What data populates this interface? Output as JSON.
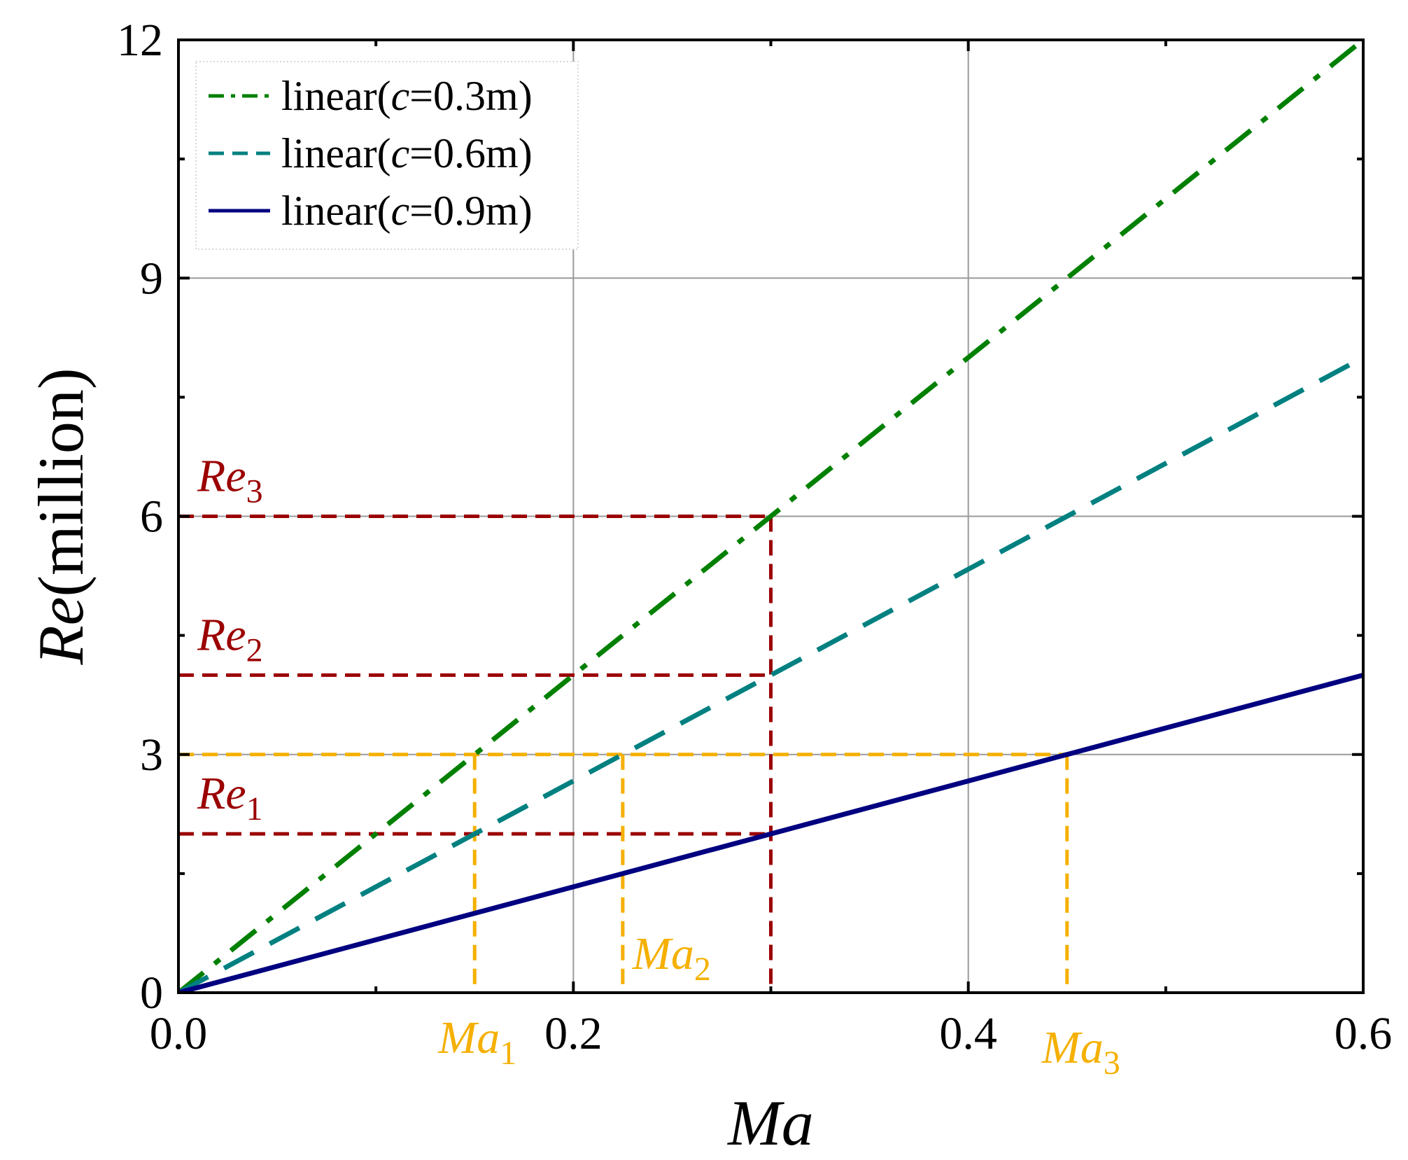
{
  "chart_data": {
    "type": "line",
    "xlabel": "Ma",
    "ylabel_var": "Re",
    "ylabel_unit": "(million)",
    "xlim": [
      0.0,
      0.6
    ],
    "ylim": [
      0,
      12
    ],
    "xticks": [
      0.0,
      0.1,
      0.2,
      0.3,
      0.4,
      0.5,
      0.6
    ],
    "xtick_labels": [
      {
        "value": 0.0,
        "text": "0.0"
      },
      {
        "value": 0.2,
        "text": "0.2"
      },
      {
        "value": 0.4,
        "text": "0.4"
      },
      {
        "value": 0.6,
        "text": "0.6"
      }
    ],
    "yticks": [
      0,
      1.5,
      3,
      4.5,
      6,
      7.5,
      9,
      10.5,
      12
    ],
    "ytick_labels": [
      {
        "value": 0,
        "text": "0"
      },
      {
        "value": 3,
        "text": "3"
      },
      {
        "value": 6,
        "text": "6"
      },
      {
        "value": 9,
        "text": "9"
      },
      {
        "value": 12,
        "text": "12"
      }
    ],
    "grid": true,
    "legend_position": "top-left",
    "series": [
      {
        "name": "linear(c=0.3m)",
        "label_pre": "linear(",
        "label_var": "c",
        "label_post": "=0.3m)",
        "style": "dash-dot",
        "color": "#008000",
        "x": [
          0.0,
          0.6
        ],
        "y": [
          0,
          12
        ]
      },
      {
        "name": "linear(c=0.6m)",
        "label_pre": "linear(",
        "label_var": "c",
        "label_post": "=0.6m)",
        "style": "dashed",
        "color": "#008080",
        "x": [
          0.0,
          0.6
        ],
        "y": [
          0,
          8
        ]
      },
      {
        "name": "linear(c=0.9m)",
        "label_pre": "linear(",
        "label_var": "c",
        "label_post": "=0.9m)",
        "style": "solid",
        "color": "#000080",
        "x": [
          0.0,
          0.6
        ],
        "y": [
          0,
          4
        ]
      }
    ],
    "reference_color_re": "#9B0000",
    "reference_color_ma": "#F5B000",
    "re_annotations": [
      {
        "base": "Re",
        "sub": "1",
        "value": 2
      },
      {
        "base": "Re",
        "sub": "2",
        "value": 4
      },
      {
        "base": "Re",
        "sub": "3",
        "value": 6
      }
    ],
    "ma_annotations": [
      {
        "base": "Ma",
        "sub": "1",
        "value": 0.15
      },
      {
        "base": "Ma",
        "sub": "2",
        "value": 0.225
      },
      {
        "base": "Ma",
        "sub": "3",
        "value": 0.45
      }
    ],
    "re_guides": [
      {
        "x": 0.3,
        "y": 2
      },
      {
        "x": 0.3,
        "y": 4
      },
      {
        "x": 0.3,
        "y": 6
      }
    ],
    "ma_guide_level": 3
  }
}
